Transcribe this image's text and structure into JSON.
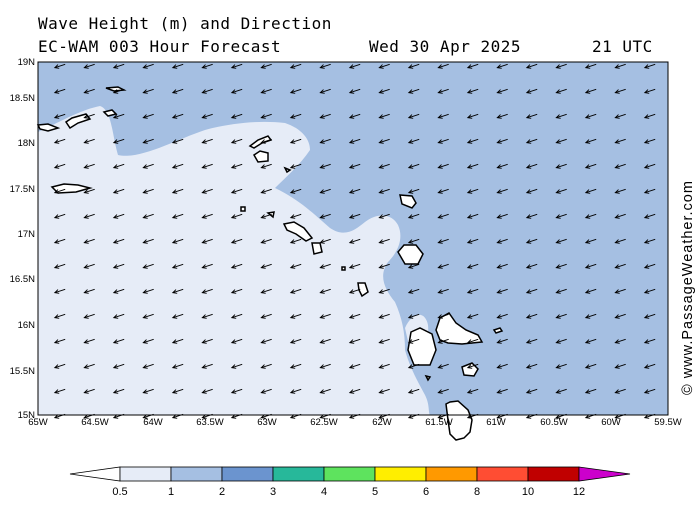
{
  "header": {
    "title": "Wave Height (m) and Direction",
    "model": "EC-WAM 003 Hour Forecast",
    "date": "Wed 30 Apr 2025",
    "time": "21 UTC"
  },
  "credit": "© www.PassageWeather.com",
  "map": {
    "lon_labels": [
      "65W",
      "64.5W",
      "64W",
      "63.5W",
      "63W",
      "62.5W",
      "62W",
      "61.5W",
      "61W",
      "60.5W",
      "60W",
      "59.5W"
    ],
    "lat_labels": [
      "15N",
      "15.5N",
      "16N",
      "16.5N",
      "17N",
      "17.5N",
      "18N",
      "18.5N",
      "19N"
    ],
    "lon_range": [
      -65,
      -59.5
    ],
    "lat_range": [
      15,
      19
    ],
    "wave_direction": "from east-northeast (arrows point west-southwest)",
    "colors": {
      "band_0_5_1": "#e6ecf7",
      "band_1_2": "#a5bfe2",
      "land_fill": "#ffffff",
      "coast": "#000000"
    }
  },
  "colorbar": {
    "labels": [
      "0.5",
      "1",
      "2",
      "3",
      "4",
      "5",
      "6",
      "8",
      "10",
      "12"
    ],
    "colors": [
      "#e6ecf7",
      "#a5bfe2",
      "#6b94cf",
      "#27b89a",
      "#5ee35e",
      "#ffee00",
      "#ff9900",
      "#ff4d33",
      "#c00000",
      "#cc00cc"
    ]
  }
}
